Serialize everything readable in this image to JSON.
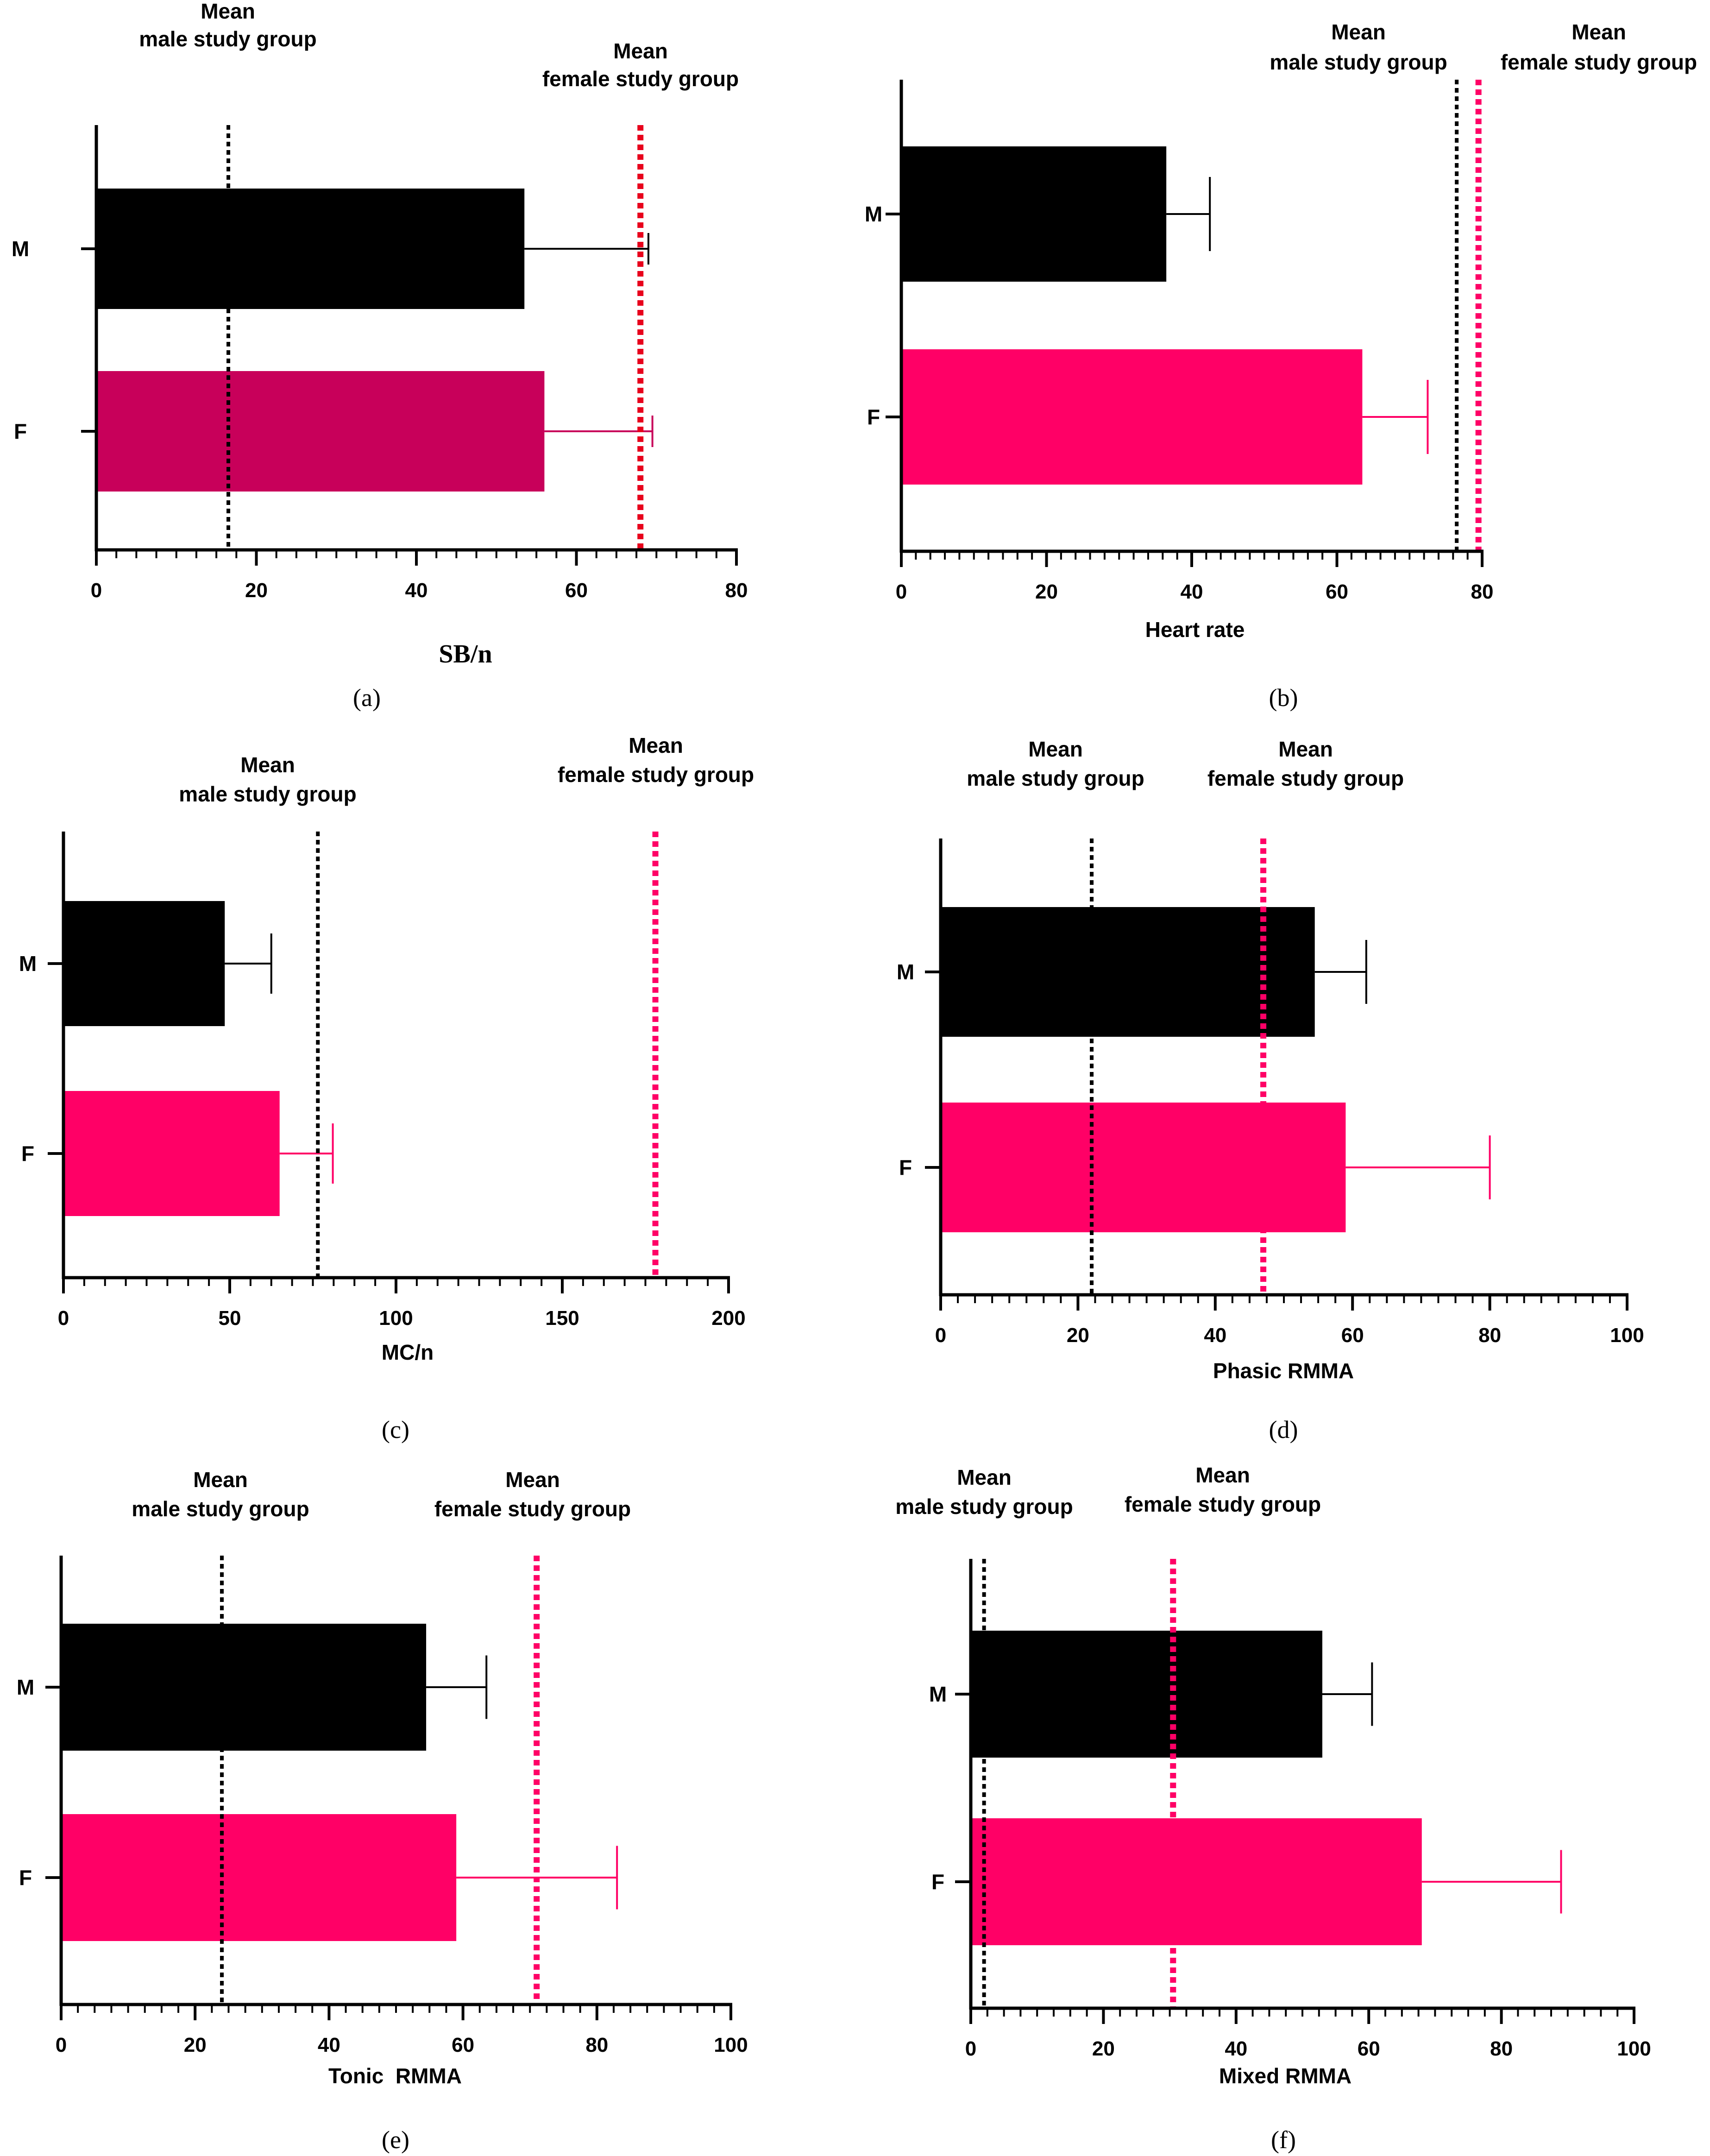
{
  "colors": {
    "male_bar": "#000000",
    "female_bar_a": "#c8005a",
    "female_bar": "#ff0066",
    "male_line": "#000000",
    "female_line_a": "#e8001c",
    "female_line": "#ff0066"
  },
  "chart_data": [
    {
      "type": "bar",
      "orientation": "horizontal",
      "panel": "(a)",
      "categories": [
        "M",
        "F"
      ],
      "values": [
        53.5,
        56
      ],
      "errors": [
        15.5,
        13.5
      ],
      "xlabel": "SB/n",
      "xlim": [
        0,
        80
      ],
      "xticks": [
        0,
        20,
        40,
        60,
        80
      ],
      "minor_step": 2.5,
      "ref_lines": [
        {
          "label_line1": "Mean",
          "label_line2": "male study group",
          "value": 16.5,
          "series": "male"
        },
        {
          "label_line1": "Mean",
          "label_line2": "female study group",
          "value": 68,
          "series": "female"
        }
      ]
    },
    {
      "type": "bar",
      "orientation": "horizontal",
      "panel": "(b)",
      "categories": [
        "M",
        "F"
      ],
      "values": [
        36.5,
        63.5
      ],
      "errors": [
        6,
        9
      ],
      "xlabel": "Heart rate",
      "xlim": [
        0,
        80
      ],
      "xticks": [
        0,
        20,
        40,
        60,
        80
      ],
      "minor_step": 2,
      "ref_lines": [
        {
          "label_line1": "Mean",
          "label_line2": "male study group",
          "value": 76.5,
          "series": "male"
        },
        {
          "label_line1": "Mean",
          "label_line2": "female study group",
          "value": 79.5,
          "series": "female"
        }
      ]
    },
    {
      "type": "bar",
      "orientation": "horizontal",
      "panel": "(c)",
      "categories": [
        "M",
        "F"
      ],
      "values": [
        48.5,
        65
      ],
      "errors": [
        14,
        16
      ],
      "xlabel": "MC/n",
      "xlim": [
        0,
        200
      ],
      "xticks": [
        0,
        50,
        100,
        150,
        200
      ],
      "minor_step": 6.25,
      "ref_lines": [
        {
          "label_line1": "Mean",
          "label_line2": "male study group",
          "value": 76.5,
          "series": "male"
        },
        {
          "label_line1": "Mean",
          "label_line2": "female study group",
          "value": 178,
          "series": "female"
        }
      ]
    },
    {
      "type": "bar",
      "orientation": "horizontal",
      "panel": "(d)",
      "categories": [
        "M",
        "F"
      ],
      "values": [
        54.5,
        59
      ],
      "errors": [
        7.5,
        21
      ],
      "xlabel": "Phasic RMMA",
      "xlim": [
        0,
        100
      ],
      "xticks": [
        0,
        20,
        40,
        60,
        80,
        100
      ],
      "minor_step": 2.5,
      "ref_lines": [
        {
          "label_line1": "Mean",
          "label_line2": "male study group",
          "value": 22,
          "series": "male"
        },
        {
          "label_line1": "Mean",
          "label_line2": "female study group",
          "value": 47,
          "series": "female"
        }
      ]
    },
    {
      "type": "bar",
      "orientation": "horizontal",
      "panel": "(e)",
      "categories": [
        "M",
        "F"
      ],
      "values": [
        54.5,
        59
      ],
      "errors": [
        9,
        24
      ],
      "xlabel": "Tonic  RMMA",
      "xlim": [
        0,
        100
      ],
      "xticks": [
        0,
        20,
        40,
        60,
        80,
        100
      ],
      "minor_step": 2.5,
      "ref_lines": [
        {
          "label_line1": "Mean",
          "label_line2": "male study group",
          "value": 24,
          "series": "male"
        },
        {
          "label_line1": "Mean",
          "label_line2": "female study group",
          "value": 71,
          "series": "female"
        }
      ]
    },
    {
      "type": "bar",
      "orientation": "horizontal",
      "panel": "(f)",
      "categories": [
        "M",
        "F"
      ],
      "values": [
        53,
        68
      ],
      "errors": [
        7.5,
        21
      ],
      "xlabel": "Mixed RMMA",
      "xlim": [
        0,
        100
      ],
      "xticks": [
        0,
        20,
        40,
        60,
        80,
        100
      ],
      "minor_step": 2.5,
      "ref_lines": [
        {
          "label_line1": "Mean",
          "label_line2": "male study group",
          "value": 2,
          "series": "male"
        },
        {
          "label_line1": "Mean",
          "label_line2": "female study group",
          "value": 30.5,
          "series": "female"
        }
      ]
    }
  ]
}
